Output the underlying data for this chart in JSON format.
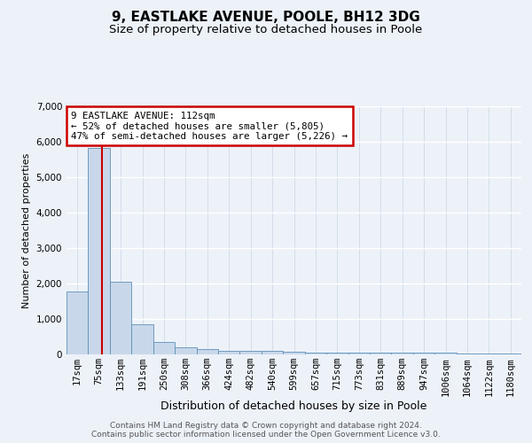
{
  "title": "9, EASTLAKE AVENUE, POOLE, BH12 3DG",
  "subtitle": "Size of property relative to detached houses in Poole",
  "xlabel": "Distribution of detached houses by size in Poole",
  "ylabel": "Number of detached properties",
  "categories": [
    "17sqm",
    "75sqm",
    "133sqm",
    "191sqm",
    "250sqm",
    "308sqm",
    "366sqm",
    "424sqm",
    "482sqm",
    "540sqm",
    "599sqm",
    "657sqm",
    "715sqm",
    "773sqm",
    "831sqm",
    "889sqm",
    "947sqm",
    "1006sqm",
    "1064sqm",
    "1122sqm",
    "1180sqm"
  ],
  "values": [
    1780,
    5820,
    2060,
    840,
    340,
    200,
    140,
    110,
    100,
    90,
    70,
    60,
    55,
    50,
    45,
    42,
    40,
    38,
    36,
    34,
    30
  ],
  "bar_color": "#c8d8ea",
  "bar_edge_color": "#6090b8",
  "annotation_text": "9 EASTLAKE AVENUE: 112sqm\n← 52% of detached houses are smaller (5,805)\n47% of semi-detached houses are larger (5,226) →",
  "annotation_box_color": "#ffffff",
  "annotation_border_color": "#cc0000",
  "ylim": [
    0,
    7000
  ],
  "yticks": [
    0,
    1000,
    2000,
    3000,
    4000,
    5000,
    6000,
    7000
  ],
  "background_color": "#edf2f9",
  "plot_bg_color": "#edf2f9",
  "footer": "Contains HM Land Registry data © Crown copyright and database right 2024.\nContains public sector information licensed under the Open Government Licence v3.0.",
  "title_fontsize": 11,
  "subtitle_fontsize": 9.5,
  "xlabel_fontsize": 9,
  "ylabel_fontsize": 8,
  "tick_fontsize": 7.5,
  "footer_fontsize": 6.5
}
